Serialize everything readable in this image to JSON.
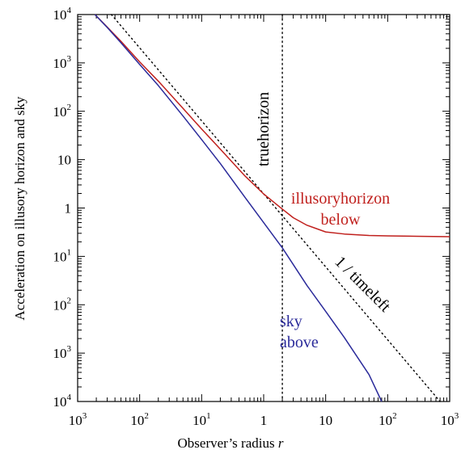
{
  "chart_data": {
    "type": "line",
    "xlabel": "Observer’s radius",
    "xlabel_var": "r",
    "ylabel": "Acceleration on illusory horizon and sky",
    "x_scale": "log",
    "y_scale": "log",
    "xlim": [
      0.001,
      1000
    ],
    "ylim": [
      0.0001,
      10000
    ],
    "x_ticks": [
      {
        "value": 0.001,
        "base": "10",
        "sup": "3"
      },
      {
        "value": 0.01,
        "base": "10",
        "sup": "2"
      },
      {
        "value": 0.1,
        "base": "10",
        "sup": "1"
      },
      {
        "value": 1,
        "base": "1",
        "sup": ""
      },
      {
        "value": 10,
        "base": "10",
        "sup": ""
      },
      {
        "value": 100,
        "base": "10",
        "sup": "2"
      },
      {
        "value": 1000,
        "base": "10",
        "sup": "3"
      }
    ],
    "y_ticks": [
      {
        "value": 0.0001,
        "base": "10",
        "sup": "4"
      },
      {
        "value": 0.001,
        "base": "10",
        "sup": "3"
      },
      {
        "value": 0.01,
        "base": "10",
        "sup": "2"
      },
      {
        "value": 0.1,
        "base": "10",
        "sup": "1"
      },
      {
        "value": 1,
        "base": "1",
        "sup": ""
      },
      {
        "value": 10,
        "base": "10",
        "sup": ""
      },
      {
        "value": 100,
        "base": "10",
        "sup": "2"
      },
      {
        "value": 1000,
        "base": "10",
        "sup": "3"
      },
      {
        "value": 10000,
        "base": "10",
        "sup": "4"
      }
    ],
    "series": [
      {
        "color": "#c0201d",
        "x": [
          0.0019,
          0.003,
          0.005,
          0.01,
          0.02,
          0.05,
          0.1,
          0.2,
          0.5,
          1,
          1.5,
          2,
          3,
          5,
          10,
          20,
          50,
          100,
          300,
          1000
        ],
        "y": [
          10000,
          5500,
          2800,
          1050,
          420,
          115,
          43,
          16.5,
          4.6,
          1.95,
          1.28,
          0.95,
          0.63,
          0.44,
          0.32,
          0.29,
          0.27,
          0.265,
          0.26,
          0.255
        ]
      },
      {
        "color": "#2a2a9a",
        "x": [
          0.0019,
          0.003,
          0.005,
          0.01,
          0.02,
          0.05,
          0.1,
          0.2,
          0.5,
          1,
          2,
          5,
          10,
          20,
          50,
          80
        ],
        "y": [
          10000,
          5400,
          2600,
          930,
          340,
          80,
          26,
          8.3,
          1.66,
          0.5,
          0.15,
          0.025,
          0.0073,
          0.0021,
          0.00036,
          0.0001
        ]
      }
    ],
    "reference_lines": [
      {
        "kind": "diagonal",
        "style": "dotted",
        "color": "#000000",
        "x": [
          0.0035,
          700
        ],
        "y": [
          10000,
          0.0001
        ]
      },
      {
        "kind": "vertical",
        "style": "dotted",
        "color": "#000000",
        "x": 2
      }
    ],
    "annotations": {
      "true_horizon": {
        "text": "truehorizon",
        "color": "#000000"
      },
      "illusory_line1": {
        "text": "illusoryhorizon",
        "color": "#c0201d"
      },
      "illusory_line2": {
        "text": "below",
        "color": "#c0201d"
      },
      "timeleft": {
        "text": "1 / timeleft",
        "color": "#000000"
      },
      "sky_line1": {
        "text": "sky",
        "color": "#2a2a9a"
      },
      "sky_line2": {
        "text": "above",
        "color": "#2a2a9a"
      }
    },
    "grid": false,
    "legend": "none"
  }
}
